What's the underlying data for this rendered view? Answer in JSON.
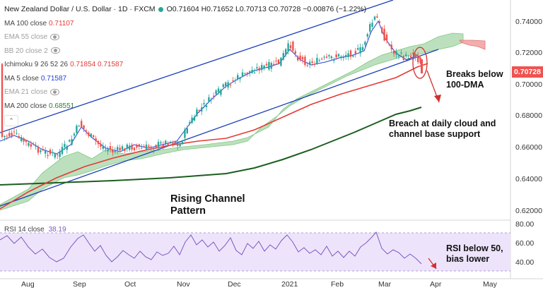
{
  "header": {
    "title": "New Zealand Dollar / U.S. Dollar · 1D · FXCM",
    "ohlc": "O0.71604 H0.71652 L0.70713 C0.70728 −0.00876 (−1.22%)"
  },
  "legend": [
    {
      "label": "MA 100 close",
      "value": "0.71107",
      "color": "#e53935",
      "dim": false
    },
    {
      "label": "EMA 55 close",
      "value": "",
      "color": "#999999",
      "dim": true
    },
    {
      "label": "BB 20 close 2",
      "value": "",
      "color": "#999999",
      "dim": true
    },
    {
      "label": "Ichimoku 9 26 52 26",
      "value": "0.71854  0.71587",
      "color": "#e53935",
      "dim": false
    },
    {
      "label": "MA 5 close",
      "value": "0.71587",
      "color": "#1e3fd8",
      "dim": false
    },
    {
      "label": "EMA 21 close",
      "value": "",
      "color": "#999999",
      "dim": true
    },
    {
      "label": "MA 200 close",
      "value": "0.68551",
      "color": "#2e7d32",
      "dim": false
    }
  ],
  "annotations": {
    "breaks": "Breaks below\n100-DMA",
    "breach": "Breach at daily cloud and\nchannel base support",
    "channel": "Rising Channel\nPattern",
    "rsi": "RSI below 50,\nbias lower"
  },
  "rsi_legend": {
    "label": "RSI 14 close",
    "value": "38.19"
  },
  "price_tag": "0.70728",
  "price_axis": [
    "0.74000",
    "0.72000",
    "0.70000",
    "0.68000",
    "0.66000",
    "0.64000",
    "0.62000"
  ],
  "rsi_axis": [
    "80.00",
    "60.00",
    "40.00"
  ],
  "time_axis": [
    "Aug",
    "Sep",
    "Oct",
    "Nov",
    "Dec",
    "2021",
    "Feb",
    "Mar",
    "Apr",
    "May"
  ],
  "colors": {
    "up": "#26a69a",
    "down": "#ef5350",
    "cloud": "#a5d6a7",
    "cloud_red": "#ef9a9a",
    "ma100": "#e53935",
    "ma200": "#1b5e20",
    "channel": "#1a3eb8",
    "rsi": "#9575cd"
  }
}
